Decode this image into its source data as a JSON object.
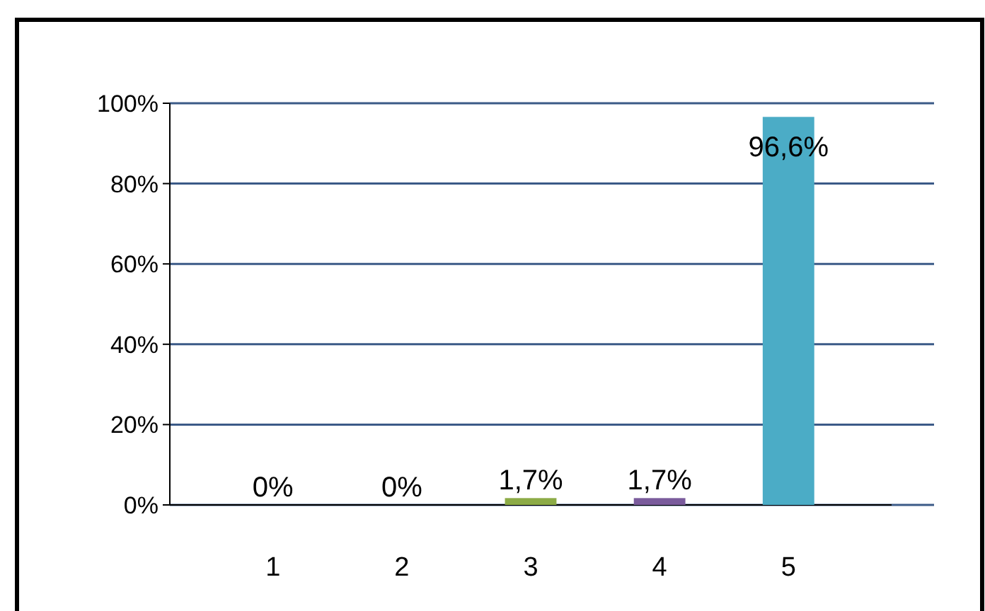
{
  "chart_data": {
    "type": "bar",
    "categories": [
      "1",
      "2",
      "3",
      "4",
      "5"
    ],
    "values": [
      0,
      0,
      1.7,
      1.7,
      96.6
    ],
    "colors": [
      "#3a6894",
      "#a33434",
      "#8cab46",
      "#7a5b9c",
      "#4bacc6"
    ],
    "value_labels": [
      "0%",
      "0%",
      "1,7%",
      "1,7%",
      "96,6%"
    ],
    "ylim": [
      0,
      100
    ],
    "yticks": [
      {
        "value": 0,
        "label": "0%"
      },
      {
        "value": 20,
        "label": "20%"
      },
      {
        "value": 40,
        "label": "40%"
      },
      {
        "value": 60,
        "label": "60%"
      },
      {
        "value": 80,
        "label": "80%"
      },
      {
        "value": 100,
        "label": "100%"
      }
    ],
    "grid": "y"
  }
}
